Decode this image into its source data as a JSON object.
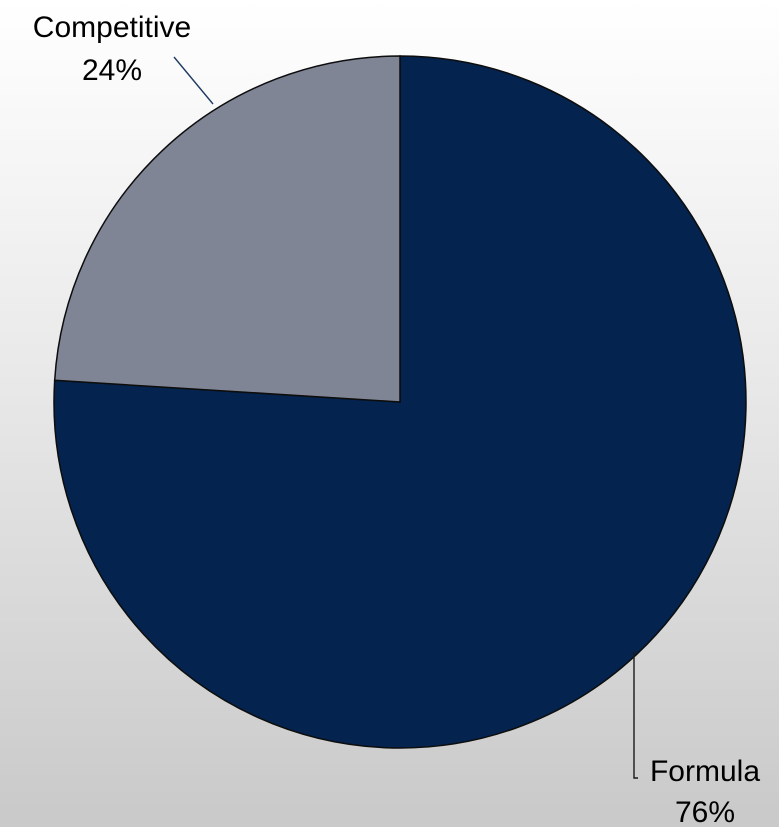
{
  "chart_data": {
    "type": "pie",
    "title": "",
    "slices": [
      {
        "label": "Formula",
        "value": 76,
        "value_label": "76%",
        "color": "#04234f"
      },
      {
        "label": "Competitive",
        "value": 24,
        "value_label": "24%",
        "color": "#7f8595"
      }
    ],
    "start_angle_deg": 0,
    "direction": "clockwise",
    "legend": "none",
    "data_labels": "outside-with-leader-lines"
  }
}
